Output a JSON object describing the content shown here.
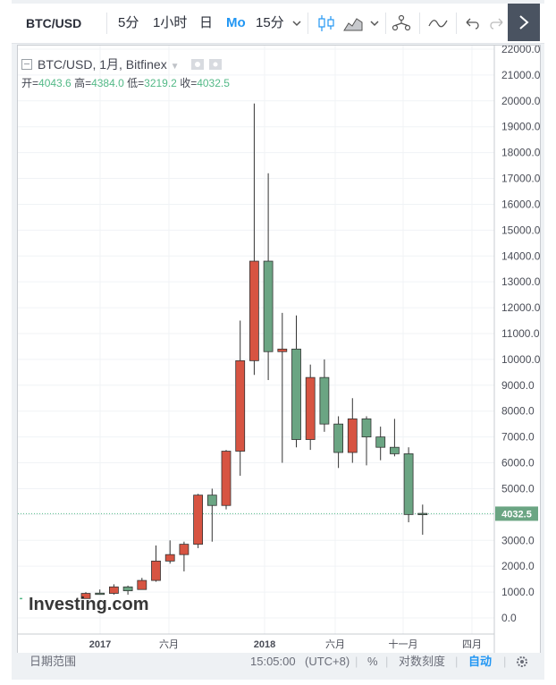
{
  "toolbar": {
    "symbol": "BTC/USD",
    "intervals": [
      "5分",
      "1小时",
      "日",
      "Mo",
      "15分"
    ],
    "active_interval": "Mo"
  },
  "legend": {
    "title": "BTC/USD, 1月, Bitfinex",
    "open_label": "开=",
    "open": "4043.6",
    "high_label": "高=",
    "high": "4384.0",
    "low_label": "低=",
    "low": "3219.2",
    "close_label": "收=",
    "close": "4032.5"
  },
  "watermark": "Investing.com",
  "price_tag": "4032.5",
  "statusbar": {
    "range_label": "日期范围",
    "time": "15:05:00",
    "timezone": "(UTC+8)",
    "percent": "%",
    "log": "对数刻度",
    "auto": "自动"
  },
  "colors": {
    "up": "#6ba583",
    "down": "#d75442",
    "grid": "#f0f3f6",
    "accent": "#2196f3"
  },
  "chart_data": {
    "type": "candlestick",
    "title": "BTC/USD, 1月, Bitfinex",
    "ylim": [
      0,
      22000
    ],
    "y_ticks": [
      "0.0",
      "1000.0",
      "2000.0",
      "3000.0",
      "4000.0",
      "5000.0",
      "6000.0",
      "7000.0",
      "8000.0",
      "9000.0",
      "10000.0",
      "11000.0",
      "12000.0",
      "13000.0",
      "14000.0",
      "15000.0",
      "16000.0",
      "17000.0",
      "18000.0",
      "19000.0",
      "20000.0",
      "21000.0",
      "22000.0"
    ],
    "x_labels": [
      "2017",
      "六月",
      "2018",
      "六月",
      "十一月",
      "四月"
    ],
    "candles": [
      {
        "o": 750,
        "h": 1000,
        "l": 750,
        "c": 950
      },
      {
        "o": 960,
        "h": 1100,
        "l": 960,
        "c": 950
      },
      {
        "o": 950,
        "h": 1300,
        "l": 900,
        "c": 1200
      },
      {
        "o": 1200,
        "h": 1250,
        "l": 900,
        "c": 1050
      },
      {
        "o": 1100,
        "h": 1550,
        "l": 1100,
        "c": 1450
      },
      {
        "o": 1450,
        "h": 2800,
        "l": 1400,
        "c": 2200
      },
      {
        "o": 2200,
        "h": 3000,
        "l": 2100,
        "c": 2450
      },
      {
        "o": 2450,
        "h": 2950,
        "l": 1800,
        "c": 2850
      },
      {
        "o": 2850,
        "h": 4800,
        "l": 2700,
        "c": 4750
      },
      {
        "o": 4750,
        "h": 5000,
        "l": 2950,
        "c": 4350
      },
      {
        "o": 4350,
        "h": 6500,
        "l": 4200,
        "c": 6450
      },
      {
        "o": 6450,
        "h": 11500,
        "l": 5500,
        "c": 9950
      },
      {
        "o": 9950,
        "h": 19900,
        "l": 9400,
        "c": 13800
      },
      {
        "o": 13800,
        "h": 17200,
        "l": 9200,
        "c": 10300
      },
      {
        "o": 10300,
        "h": 11800,
        "l": 6000,
        "c": 10400
      },
      {
        "o": 10400,
        "h": 11700,
        "l": 6600,
        "c": 6900
      },
      {
        "o": 6900,
        "h": 9800,
        "l": 6500,
        "c": 9300
      },
      {
        "o": 9300,
        "h": 10000,
        "l": 7200,
        "c": 7500
      },
      {
        "o": 7500,
        "h": 7800,
        "l": 5800,
        "c": 6400
      },
      {
        "o": 6400,
        "h": 8500,
        "l": 6000,
        "c": 7700
      },
      {
        "o": 7700,
        "h": 7800,
        "l": 5900,
        "c": 7000
      },
      {
        "o": 7000,
        "h": 7400,
        "l": 6100,
        "c": 6600
      },
      {
        "o": 6600,
        "h": 7700,
        "l": 6250,
        "c": 6350
      },
      {
        "o": 6350,
        "h": 6600,
        "l": 3700,
        "c": 4000
      },
      {
        "o": 4043.6,
        "h": 4384.0,
        "l": 3219.2,
        "c": 4032.5
      }
    ]
  }
}
